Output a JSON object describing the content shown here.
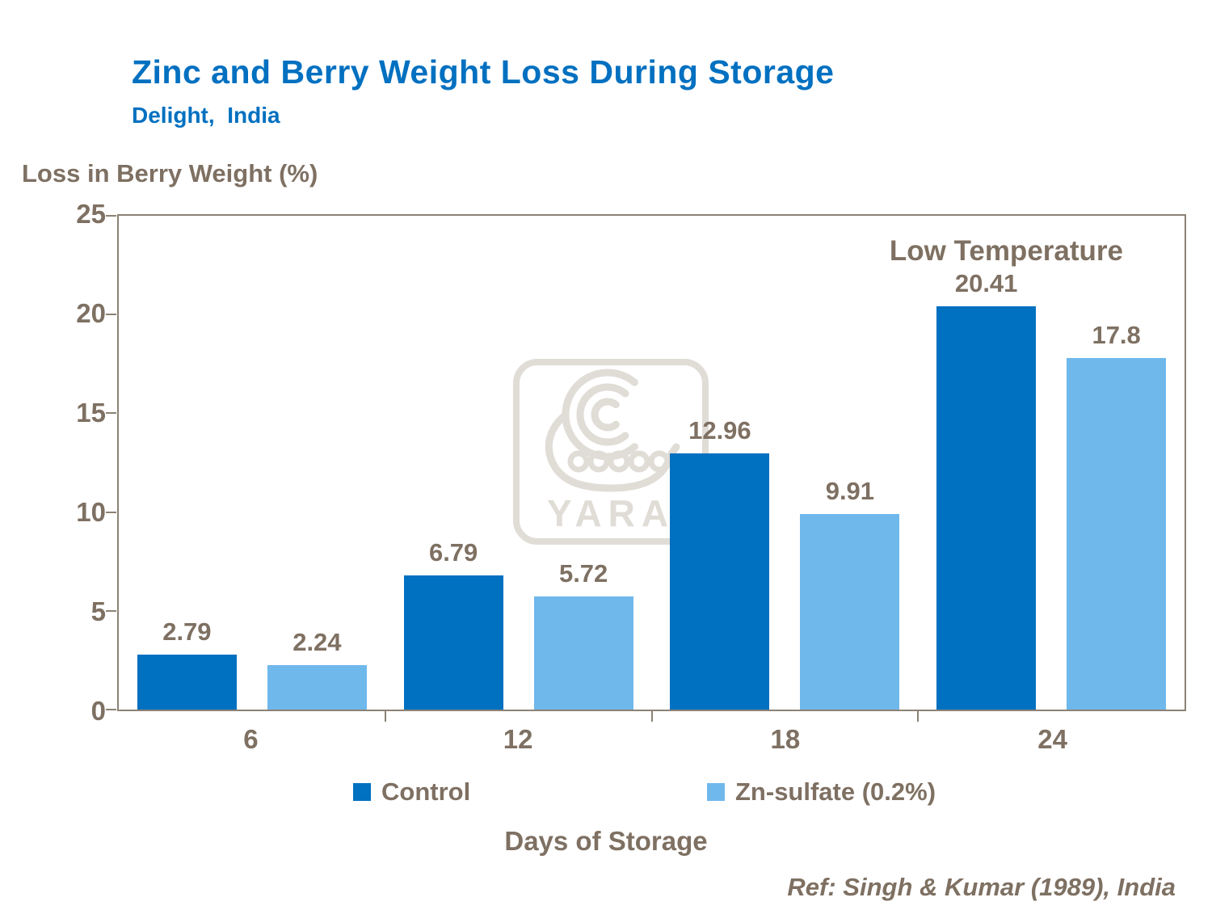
{
  "header": {
    "title": "Zinc and Berry Weight Loss During Storage",
    "subtitle": "Delight,  India"
  },
  "chart_data": {
    "type": "bar",
    "categories": [
      "6",
      "12",
      "18",
      "24"
    ],
    "series": [
      {
        "name": "Control",
        "color": "#0070C0",
        "values": [
          2.79,
          6.79,
          12.96,
          20.41
        ]
      },
      {
        "name": "Zn-sulfate (0.2%)",
        "color": "#6FB8EC",
        "values": [
          2.24,
          5.72,
          9.91,
          17.8
        ]
      }
    ],
    "title": "Zinc and Berry Weight Loss During Storage",
    "xlabel": "Days of Storage",
    "ylabel": "Loss in Berry Weight (%)",
    "ylim": [
      0,
      25
    ],
    "yticks": [
      0,
      5,
      10,
      15,
      20,
      25
    ],
    "grid": false,
    "legend_position": "bottom",
    "annotation": "Low Temperature",
    "data_labels": true
  },
  "watermark": {
    "text": "YARA"
  },
  "footer": {
    "reference": "Ref: Singh & Kumar (1989), India"
  },
  "colors": {
    "title_blue": "#0070C0",
    "label_brown": "#7E7062",
    "axis_line": "#8C8274",
    "watermark_gray": "#E0DCD6",
    "control_bar": "#0070C0",
    "zn_sulfate_bar": "#6FB8EC"
  }
}
